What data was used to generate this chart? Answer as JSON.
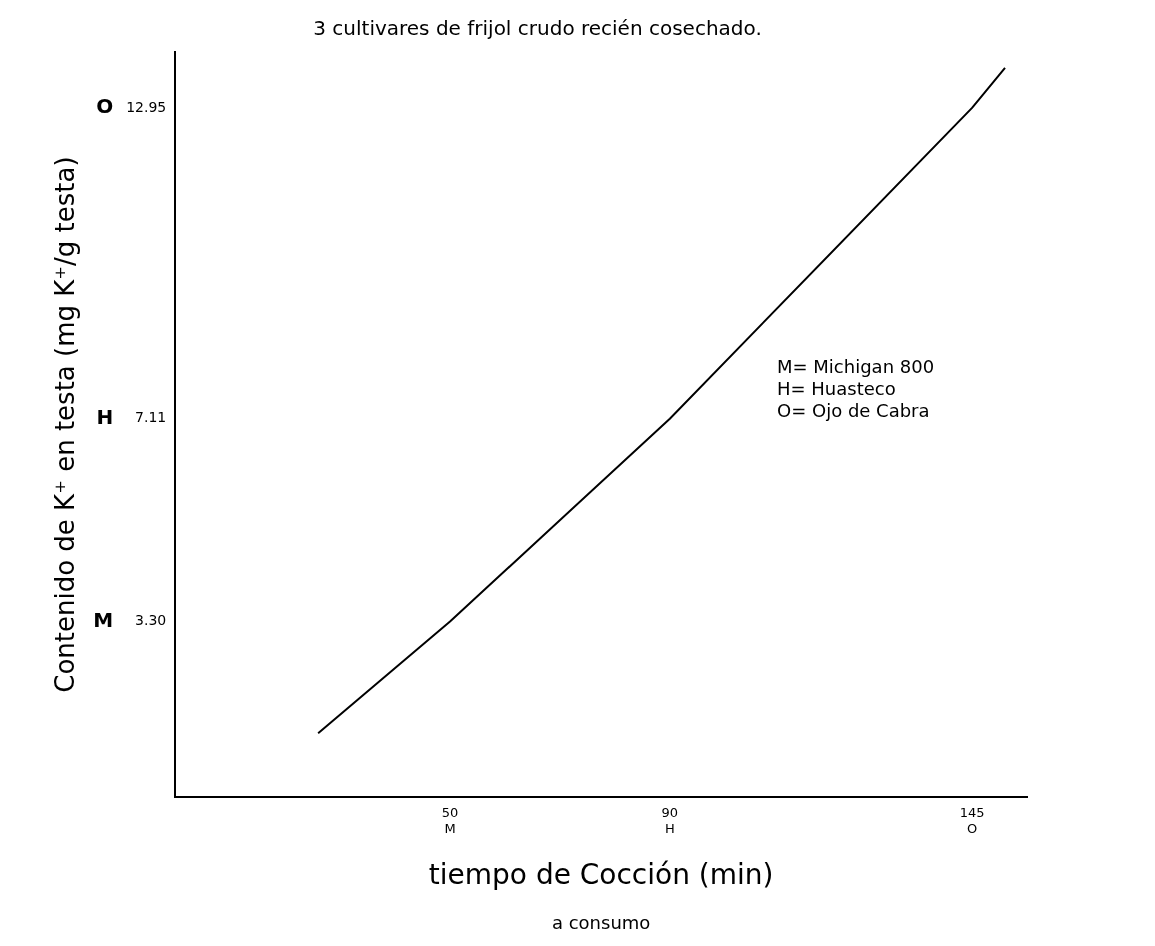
{
  "chart_data": {
    "type": "line",
    "title": "3 cultivares de frijol crudo recién cosechado.",
    "xlabel": "tiempo de Cocción (min)",
    "ylabel": "Contenido de K⁺ en testa (mg K⁺/g testa)",
    "annotations": [
      "M= Michigan 800",
      "H= Huasteco",
      "O= Ojo de Cabra",
      "a consumo",
      "M",
      "H",
      "O"
    ],
    "x": [
      26,
      50,
      90,
      145,
      151
    ],
    "series": [
      {
        "color": "#000000",
        "values": [
          1.2,
          3.3,
          7.11,
          12.95,
          13.7
        ]
      }
    ],
    "xlim": [
      0,
      155
    ],
    "xticks": [
      {
        "value": 50,
        "label": "50\nM"
      },
      {
        "value": 90,
        "label": "90\nH"
      },
      {
        "value": 145,
        "label": "145\nO"
      }
    ],
    "ylim": [
      0,
      14
    ],
    "yticks": [
      {
        "value": 3.3,
        "label": "3.30"
      },
      7.11,
      12.95
    ],
    "grid": false,
    "legend": false,
    "marker": "none",
    "line_style": "solid"
  }
}
